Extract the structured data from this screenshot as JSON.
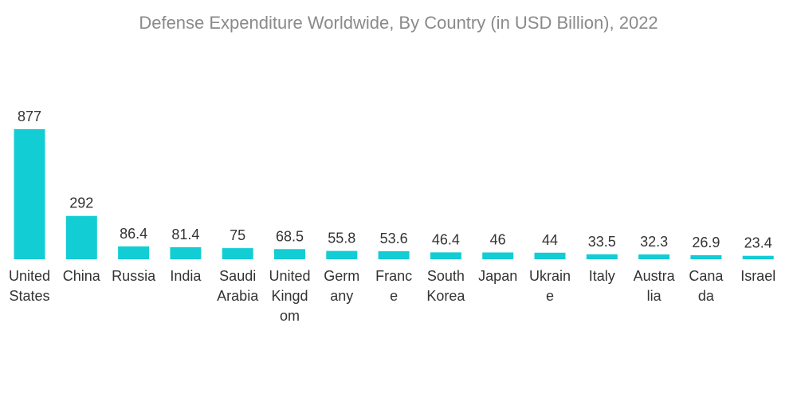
{
  "chart_data": {
    "type": "bar",
    "title": "Defense Expenditure Worldwide, By Country (in USD Billion), 2022",
    "xlabel": "",
    "ylabel": "",
    "ylim": [
      0,
      877
    ],
    "grid": false,
    "categories": [
      [
        "United",
        "States"
      ],
      [
        "China"
      ],
      [
        "Russia"
      ],
      [
        "India"
      ],
      [
        "Saudi",
        "Arabia"
      ],
      [
        "United",
        "Kingd",
        "om"
      ],
      [
        "Germ",
        "any"
      ],
      [
        "Franc",
        "e"
      ],
      [
        "South",
        "Korea"
      ],
      [
        "Japan"
      ],
      [
        "Ukrain",
        "e"
      ],
      [
        "Italy"
      ],
      [
        "Austra",
        "lia"
      ],
      [
        "Cana",
        "da"
      ],
      [
        "Israel"
      ]
    ],
    "values": [
      877,
      292,
      86.4,
      81.4,
      75,
      68.5,
      55.8,
      53.6,
      46.4,
      46,
      44,
      33.5,
      32.3,
      26.9,
      23.4
    ],
    "value_labels": [
      "877",
      "292",
      "86.4",
      "81.4",
      "75",
      "68.5",
      "55.8",
      "53.6",
      "46.4",
      "46",
      "44",
      "33.5",
      "32.3",
      "26.9",
      "23.4"
    ],
    "bar_color": "#13cdd4"
  }
}
